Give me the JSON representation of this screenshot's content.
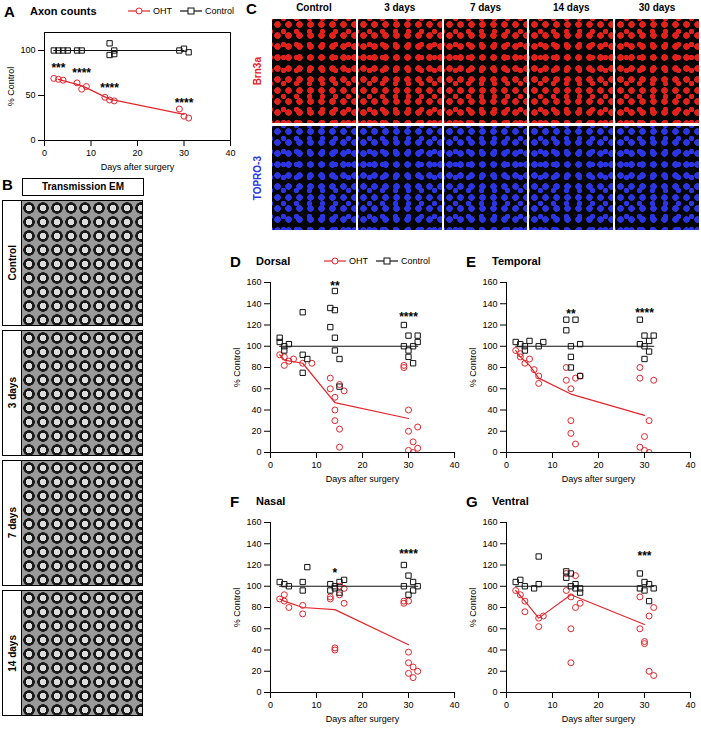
{
  "chart_data": [
    {
      "panel": "A",
      "type": "scatter",
      "title": "Axon counts",
      "x_label": "Days after surgery",
      "y_label": "% Control",
      "xlim": [
        0,
        40
      ],
      "xticks": [
        0,
        10,
        20,
        30,
        40
      ],
      "ylim": [
        0,
        120
      ],
      "yticks": [
        0,
        50,
        100
      ],
      "legend": "top-right",
      "series": [
        {
          "name": "OHT",
          "color": "#e3262d",
          "marker": "circle",
          "x": [
            2,
            3,
            4,
            7,
            8,
            9,
            13,
            14,
            15,
            29,
            30,
            31
          ],
          "values": [
            69,
            68,
            67,
            64,
            57,
            60,
            48,
            45,
            44,
            35,
            27,
            25
          ],
          "mean_x": [
            3,
            8,
            14,
            30
          ],
          "mean_values": [
            68,
            61,
            46,
            29
          ]
        },
        {
          "name": "Control",
          "color": "#111111",
          "marker": "square",
          "x": [
            2,
            3,
            4,
            5,
            7,
            8,
            14,
            14,
            15,
            15,
            29,
            30,
            31
          ],
          "values": [
            100,
            100,
            100,
            100,
            100,
            100,
            108,
            95,
            96,
            100,
            100,
            102,
            98
          ],
          "mean_x": [
            2,
            7,
            14,
            30
          ],
          "mean_values": [
            100,
            100,
            100,
            100
          ]
        }
      ],
      "annotations": [
        {
          "text": "***",
          "x": 3,
          "y": 80
        },
        {
          "text": "****",
          "x": 8,
          "y": 75
        },
        {
          "text": "****",
          "x": 14,
          "y": 58
        },
        {
          "text": "****",
          "x": 30,
          "y": 42
        }
      ]
    },
    {
      "panel": "D",
      "type": "scatter",
      "title": "Dorsal",
      "x_label": "Days after surgery",
      "y_label": "% Control",
      "xlim": [
        0,
        40
      ],
      "xticks": [
        0,
        10,
        20,
        30,
        40
      ],
      "ylim": [
        0,
        160
      ],
      "yticks": [
        0,
        20,
        40,
        60,
        80,
        100,
        120,
        140,
        160
      ],
      "legend": "top",
      "series": [
        {
          "name": "OHT",
          "color": "#e3262d",
          "marker": "circle",
          "x": [
            2,
            3,
            3,
            4,
            5,
            7,
            9,
            13,
            13,
            14,
            14,
            14,
            15,
            15,
            15,
            16,
            29,
            29,
            30,
            30,
            30,
            31,
            31,
            32,
            32
          ],
          "values": [
            92,
            90,
            82,
            86,
            88,
            84,
            84,
            70,
            60,
            52,
            40,
            30,
            22,
            5,
            64,
            58,
            82,
            80,
            40,
            20,
            2,
            10,
            0,
            4,
            24
          ],
          "mean_x": [
            2,
            3,
            7,
            14,
            30
          ],
          "mean_values": [
            92,
            87,
            84,
            47,
            32
          ]
        },
        {
          "name": "Control",
          "color": "#111111",
          "marker": "square",
          "x": [
            2,
            2,
            3,
            3,
            4,
            7,
            7,
            7,
            8,
            13,
            13,
            14,
            14,
            14,
            14,
            15,
            15,
            29,
            29,
            30,
            30,
            30,
            31,
            31,
            32,
            32
          ],
          "values": [
            108,
            104,
            100,
            96,
            102,
            132,
            92,
            75,
            88,
            136,
            118,
            152,
            134,
            108,
            96,
            88,
            62,
            120,
            100,
            110,
            90,
            96,
            100,
            84,
            104,
            110
          ],
          "mean_x": [
            2,
            32
          ],
          "mean_values": [
            100,
            100
          ]
        }
      ],
      "annotations": [
        {
          "text": "**",
          "x": 14,
          "y": 157
        },
        {
          "text": "****",
          "x": 30,
          "y": 127
        }
      ]
    },
    {
      "panel": "E",
      "type": "scatter",
      "title": "Temporal",
      "x_label": "Days after surgery",
      "y_label": "% Control",
      "xlim": [
        0,
        40
      ],
      "xticks": [
        0,
        10,
        20,
        30,
        40
      ],
      "ylim": [
        0,
        160
      ],
      "yticks": [
        0,
        20,
        40,
        60,
        80,
        100,
        120,
        140,
        160
      ],
      "series": [
        {
          "name": "OHT",
          "color": "#e3262d",
          "marker": "circle",
          "x": [
            2,
            3,
            3,
            4,
            5,
            6,
            7,
            7,
            13,
            13,
            14,
            14,
            14,
            15,
            15,
            16,
            29,
            29,
            29,
            30,
            30,
            31,
            31,
            32
          ],
          "values": [
            96,
            93,
            90,
            84,
            88,
            78,
            72,
            65,
            80,
            68,
            60,
            30,
            18,
            8,
            70,
            72,
            80,
            70,
            5,
            15,
            2,
            0,
            30,
            68
          ],
          "mean_x": [
            2,
            3,
            5,
            7,
            14,
            30
          ],
          "mean_values": [
            96,
            90,
            82,
            70,
            55,
            35
          ]
        },
        {
          "name": "Control",
          "color": "#111111",
          "marker": "square",
          "x": [
            2,
            3,
            4,
            4,
            5,
            7,
            8,
            13,
            13,
            14,
            14,
            14,
            15,
            16,
            16,
            29,
            29,
            30,
            30,
            30,
            31,
            31,
            32
          ],
          "values": [
            104,
            102,
            100,
            96,
            105,
            100,
            104,
            125,
            115,
            100,
            90,
            80,
            125,
            102,
            72,
            125,
            102,
            100,
            110,
            88,
            105,
            95,
            110
          ],
          "mean_x": [
            2,
            32
          ],
          "mean_values": [
            100,
            100
          ]
        }
      ],
      "annotations": [
        {
          "text": "**",
          "x": 14,
          "y": 130
        },
        {
          "text": "****",
          "x": 30,
          "y": 131
        }
      ]
    },
    {
      "panel": "F",
      "type": "scatter",
      "title": "Nasal",
      "x_label": "Days after surgery",
      "y_label": "% Control",
      "xlim": [
        0,
        40
      ],
      "xticks": [
        0,
        10,
        20,
        30,
        40
      ],
      "ylim": [
        0,
        160
      ],
      "yticks": [
        0,
        20,
        40,
        60,
        80,
        100,
        120,
        140,
        160
      ],
      "series": [
        {
          "name": "OHT",
          "color": "#e3262d",
          "marker": "circle",
          "x": [
            2,
            3,
            3,
            4,
            7,
            7,
            13,
            13,
            14,
            14,
            15,
            15,
            16,
            16,
            29,
            29,
            30,
            30,
            30,
            30,
            31,
            31,
            32
          ],
          "values": [
            88,
            92,
            86,
            80,
            74,
            82,
            90,
            88,
            40,
            42,
            100,
            92,
            84,
            98,
            86,
            84,
            86,
            38,
            28,
            18,
            14,
            24,
            20
          ],
          "mean_x": [
            2,
            3,
            7,
            14,
            30
          ],
          "mean_values": [
            88,
            86,
            80,
            78,
            45
          ]
        },
        {
          "name": "Control",
          "color": "#111111",
          "marker": "square",
          "x": [
            2,
            3,
            4,
            7,
            7,
            8,
            13,
            13,
            14,
            14,
            15,
            15,
            16,
            29,
            29,
            30,
            30,
            31,
            31,
            32
          ],
          "values": [
            104,
            102,
            100,
            104,
            96,
            118,
            102,
            96,
            100,
            98,
            104,
            94,
            106,
            100,
            120,
            110,
            92,
            104,
            96,
            100
          ],
          "mean_x": [
            2,
            32
          ],
          "mean_values": [
            100,
            100
          ]
        }
      ],
      "annotations": [
        {
          "text": "*",
          "x": 14,
          "y": 112
        },
        {
          "text": "****",
          "x": 30,
          "y": 130
        }
      ]
    },
    {
      "panel": "G",
      "type": "scatter",
      "title": "Ventral",
      "x_label": "Days after surgery",
      "y_label": "% Control",
      "xlim": [
        0,
        40
      ],
      "xticks": [
        0,
        10,
        20,
        30,
        40
      ],
      "ylim": [
        0,
        160
      ],
      "yticks": [
        0,
        20,
        40,
        60,
        80,
        100,
        120,
        140,
        160
      ],
      "series": [
        {
          "name": "OHT",
          "color": "#e3262d",
          "marker": "circle",
          "x": [
            2,
            3,
            4,
            4,
            7,
            7,
            8,
            13,
            13,
            14,
            14,
            14,
            15,
            15,
            16,
            29,
            29,
            30,
            30,
            31,
            31,
            32,
            32
          ],
          "values": [
            96,
            92,
            86,
            76,
            70,
            62,
            72,
            112,
            96,
            90,
            60,
            28,
            110,
            80,
            84,
            90,
            60,
            48,
            46,
            20,
            72,
            16,
            80
          ],
          "mean_x": [
            2,
            4,
            7,
            14,
            30
          ],
          "mean_values": [
            96,
            86,
            70,
            92,
            64
          ]
        },
        {
          "name": "Control",
          "color": "#111111",
          "marker": "square",
          "x": [
            2,
            3,
            4,
            6,
            7,
            7,
            13,
            13,
            14,
            14,
            15,
            15,
            16,
            16,
            29,
            29,
            30,
            30,
            31,
            31,
            32
          ],
          "values": [
            104,
            106,
            100,
            98,
            128,
            102,
            114,
            108,
            112,
            100,
            102,
            98,
            98,
            94,
            112,
            98,
            104,
            96,
            102,
            86,
            98
          ],
          "mean_x": [
            2,
            32
          ],
          "mean_values": [
            100,
            100
          ]
        }
      ],
      "annotations": [
        {
          "text": "***",
          "x": 30,
          "y": 128
        }
      ]
    }
  ],
  "images": {
    "B": {
      "panel": "B",
      "header": "Transmission EM",
      "rows": [
        "Control",
        "3 days",
        "7 days",
        "14 days"
      ]
    },
    "C": {
      "panel": "C",
      "columns": [
        "Control",
        "3 days",
        "7 days",
        "14 days",
        "30 days"
      ],
      "rows": [
        {
          "label": "Brn3a",
          "color": "#e3201b"
        },
        {
          "label": "TOPRO-3",
          "color": "#2b35e6"
        }
      ]
    }
  }
}
